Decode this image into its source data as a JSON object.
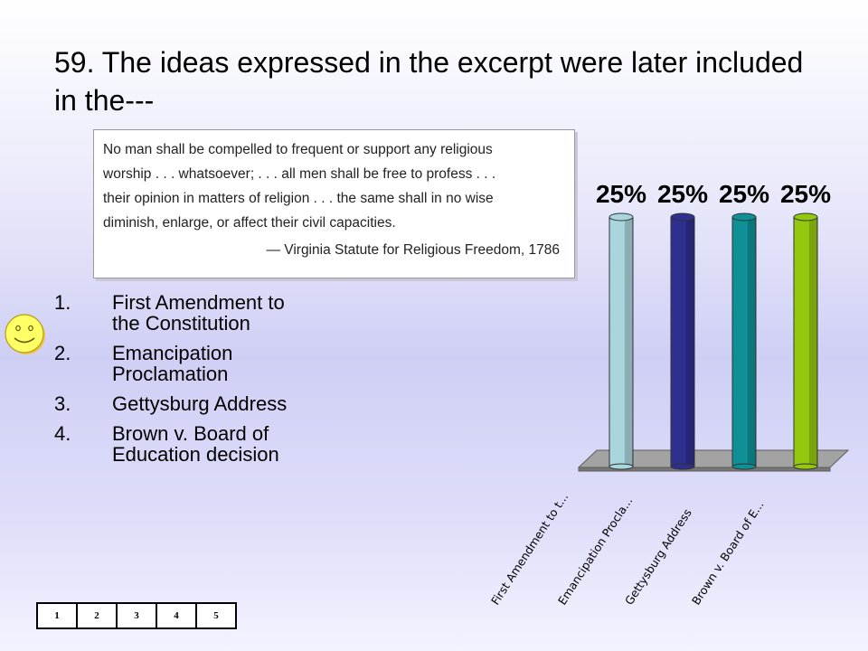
{
  "question": {
    "title": "59.  The ideas expressed in the excerpt were later included in the---"
  },
  "excerpt": {
    "lines": [
      "No man shall be compelled to frequent or support any religious",
      "worship . . . whatsoever; . . . all men shall be free to profess . . .",
      "their opinion in matters of religion . . . the same shall in no wise",
      "diminish, enlarge, or affect their civil capacities."
    ],
    "source": "— Virginia Statute for Religious Freedom, 1786"
  },
  "answers": [
    {
      "num": "1.",
      "text": "First Amendment to the Constitution"
    },
    {
      "num": "2.",
      "text": "Emancipation Proclamation"
    },
    {
      "num": "3.",
      "text": "Gettysburg Address"
    },
    {
      "num": "4.",
      "text": "Brown v. Board of Education decision"
    }
  ],
  "counter": [
    "1",
    "2",
    "3",
    "4",
    "5"
  ],
  "icons": {
    "smiley": "smiley-face-icon"
  },
  "chart_data": {
    "type": "bar",
    "categories": [
      "First Amendment to t...",
      "Emancipation Procla...",
      "Gettysburg Address",
      "Brown v. Board of E..."
    ],
    "values": [
      25,
      25,
      25,
      25
    ],
    "data_labels": [
      "25%",
      "25%",
      "25%",
      "25%"
    ],
    "colors": [
      "#a9d5dc",
      "#2e2f8e",
      "#0e9096",
      "#94c80f"
    ],
    "ylim": [
      0,
      25
    ],
    "grid": false,
    "legend": "none"
  }
}
